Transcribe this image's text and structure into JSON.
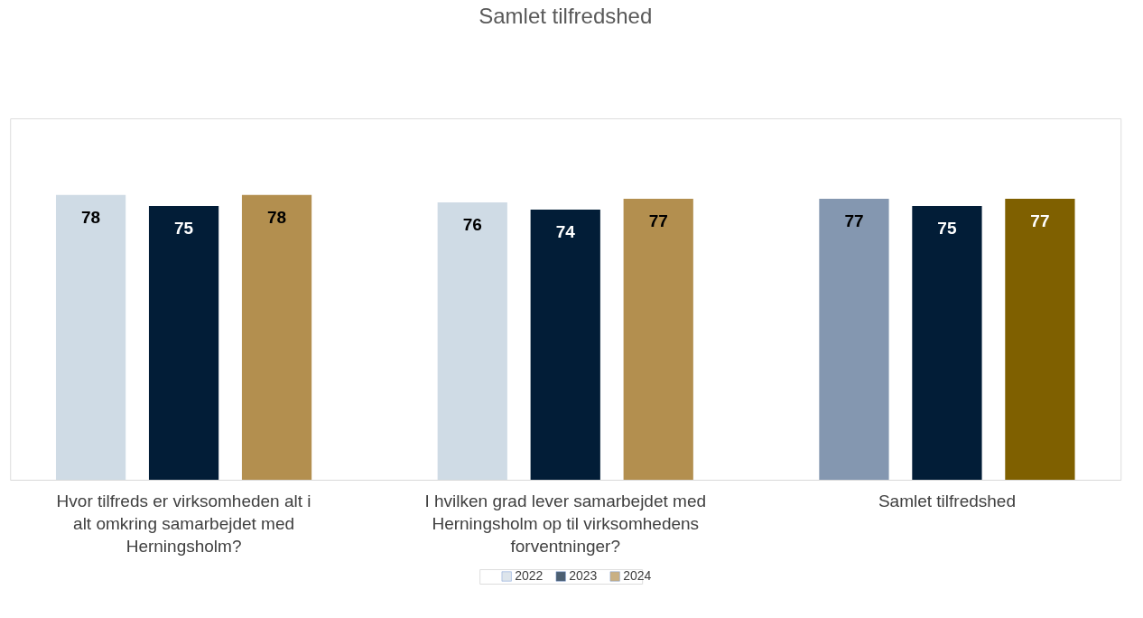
{
  "chart_data": {
    "type": "bar",
    "title": "Samlet tilfredshed",
    "categories": [
      "Hvor tilfreds er virksomheden alt i alt omkring samarbejdet med Herningsholm?",
      "I hvilken grad lever samarbejdet med Herningsholm op til virksomhedens forventninger?",
      "Samlet tilfredshed"
    ],
    "series": [
      {
        "name": "2022",
        "color": "#cfdbe5",
        "colors": [
          "#cfdbe5",
          "#cfdbe5",
          "#8497b0"
        ],
        "values": [
          78,
          76,
          77
        ]
      },
      {
        "name": "2023",
        "color": "#021d37",
        "colors": [
          "#021d37",
          "#021d37",
          "#021d37"
        ],
        "values": [
          75,
          74,
          75
        ]
      },
      {
        "name": "2024",
        "color": "#b38f4f",
        "colors": [
          "#b38f4f",
          "#b38f4f",
          "#7f6000"
        ],
        "values": [
          78,
          77,
          77
        ]
      }
    ],
    "data_labels": true,
    "grid": false,
    "legend": "bottom"
  }
}
